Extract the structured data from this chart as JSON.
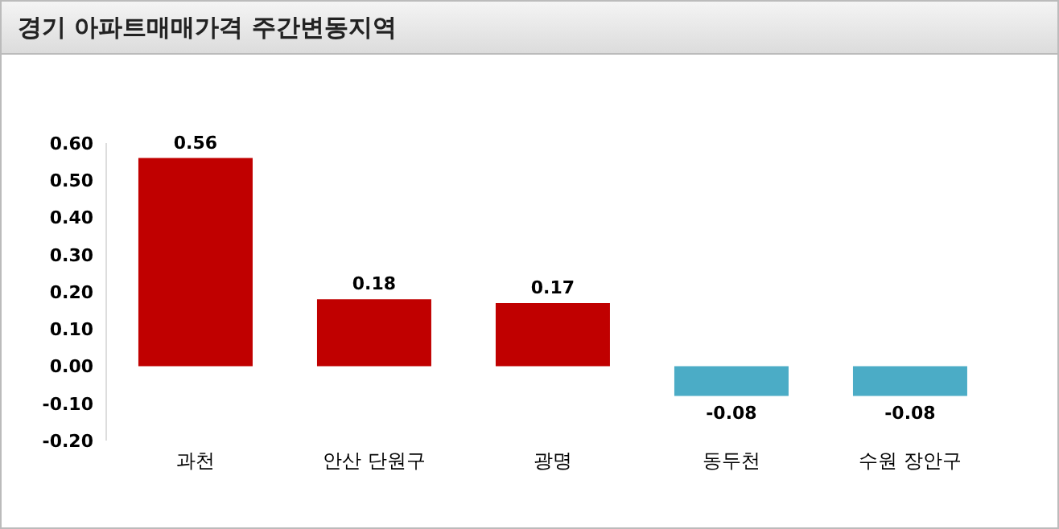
{
  "chart_data": {
    "type": "bar",
    "title": "경기 아파트매매가격 주간변동지역",
    "categories": [
      "과천",
      "안산 단원구",
      "광명",
      "동두천",
      "수원 장안구"
    ],
    "values": [
      0.56,
      0.18,
      0.17,
      -0.08,
      -0.08
    ],
    "colors": [
      "#c00000",
      "#c00000",
      "#c00000",
      "#4bacc6",
      "#4bacc6"
    ],
    "ylim": [
      -0.2,
      0.6
    ],
    "yticks": [
      {
        "value": -0.2,
        "label": "-0.20"
      },
      {
        "value": -0.1,
        "label": "-0.10"
      },
      {
        "value": 0,
        "label": "0.00"
      },
      {
        "value": 0.1,
        "label": "0.10"
      },
      {
        "value": 0.2,
        "label": "0.20"
      },
      {
        "value": 0.3,
        "label": "0.30"
      },
      {
        "value": 0.4,
        "label": "0.40"
      },
      {
        "value": 0.5,
        "label": "0.50"
      },
      {
        "value": 0.6,
        "label": "0.60"
      }
    ],
    "data_labels": true,
    "grid": false,
    "legend": false
  }
}
